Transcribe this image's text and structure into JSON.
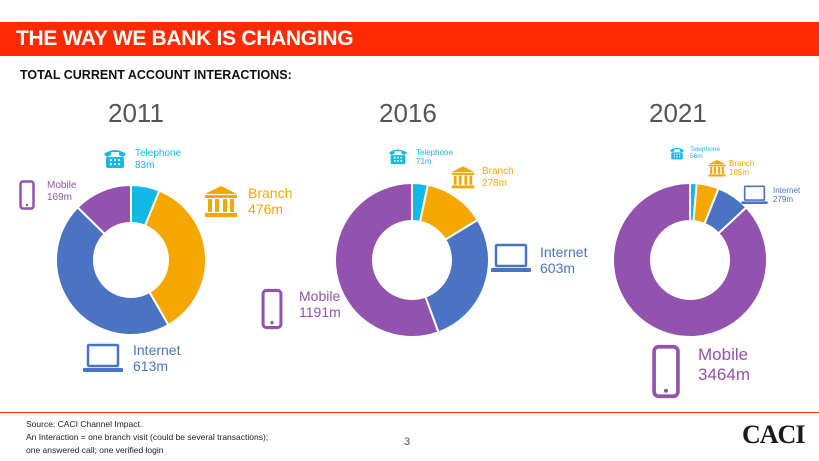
{
  "header": {
    "title": "THE WAY WE BANK IS CHANGING"
  },
  "subtitle": "TOTAL CURRENT ACCOUNT INTERACTIONS:",
  "colors": {
    "telephone": "#13b9e6",
    "branch": "#f5a700",
    "internet": "#4a73c4",
    "mobile": "#9352ae",
    "accent": "#ff2a00"
  },
  "chart_data": [
    {
      "type": "pie",
      "donut": true,
      "title": "2011",
      "slices": [
        {
          "name": "Telephone",
          "value": 83,
          "label": "83m",
          "color": "#13b9e6"
        },
        {
          "name": "Branch",
          "value": 476,
          "label": "476m",
          "color": "#f5a700"
        },
        {
          "name": "Internet",
          "value": 613,
          "label": "613m",
          "color": "#4a73c4"
        },
        {
          "name": "Mobile",
          "value": 169,
          "label": "169m",
          "color": "#9352ae"
        }
      ]
    },
    {
      "type": "pie",
      "donut": true,
      "title": "2016",
      "slices": [
        {
          "name": "Telephone",
          "value": 71,
          "label": "71m",
          "color": "#13b9e6"
        },
        {
          "name": "Branch",
          "value": 278,
          "label": "278m",
          "color": "#f5a700"
        },
        {
          "name": "Internet",
          "value": 603,
          "label": "603m",
          "color": "#4a73c4"
        },
        {
          "name": "Mobile",
          "value": 1191,
          "label": "1191m",
          "color": "#9352ae"
        }
      ]
    },
    {
      "type": "pie",
      "donut": true,
      "title": "2021",
      "slices": [
        {
          "name": "Telephone",
          "value": 56,
          "label": "56m",
          "color": "#13b9e6"
        },
        {
          "name": "Branch",
          "value": 185,
          "label": "185m",
          "color": "#f5a700"
        },
        {
          "name": "Internet",
          "value": 279,
          "label": "279m",
          "color": "#4a73c4"
        },
        {
          "name": "Mobile",
          "value": 3464,
          "label": "3464m",
          "color": "#9352ae"
        }
      ]
    }
  ],
  "footer": {
    "source": "Source: CACI Channel Impact.",
    "note_line1": "An Interaction = one branch visit (could be several transactions);",
    "note_line2": "one answered call; one verified login"
  },
  "page_number": "3",
  "logo_text": "CACI"
}
